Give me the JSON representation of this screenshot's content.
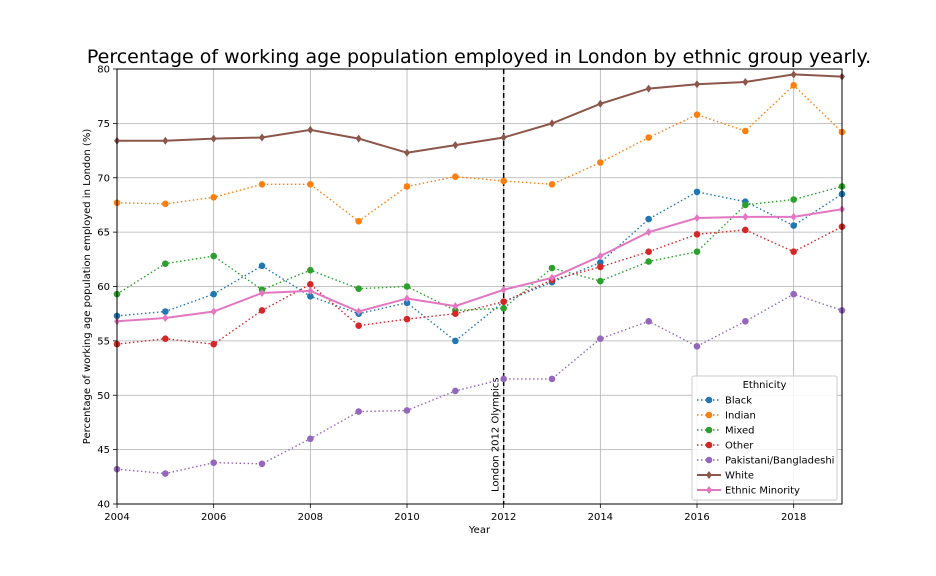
{
  "chart_data": {
    "type": "line",
    "title": "Percentage of working age population employed in London by ethnic group yearly.",
    "xlabel": "Year",
    "ylabel": "Percentage of working age population employed in London (%)",
    "xlim": [
      2004,
      2019
    ],
    "ylim": [
      40,
      80
    ],
    "xticks": [
      2004,
      2006,
      2008,
      2010,
      2012,
      2014,
      2016,
      2018
    ],
    "yticks": [
      40,
      45,
      50,
      55,
      60,
      65,
      70,
      75,
      80
    ],
    "grid": true,
    "legend_title": "Ethnicity",
    "legend_position": "lower-right",
    "annotation": {
      "x": 2012,
      "text": "London 2012 Olympics"
    },
    "x": [
      2004,
      2005,
      2006,
      2007,
      2008,
      2009,
      2010,
      2011,
      2012,
      2013,
      2014,
      2015,
      2016,
      2017,
      2018,
      2019
    ],
    "series": [
      {
        "name": "Black",
        "color": "#1f77b4",
        "style": "dotted",
        "marker": "circle",
        "values": [
          57.3,
          57.7,
          59.3,
          61.9,
          59.1,
          57.5,
          58.5,
          55.0,
          58.6,
          60.4,
          62.2,
          66.2,
          68.7,
          67.8,
          65.6,
          68.5
        ]
      },
      {
        "name": "Indian",
        "color": "#ff7f0e",
        "style": "dotted",
        "marker": "circle",
        "values": [
          67.7,
          67.6,
          68.2,
          69.4,
          69.4,
          66.0,
          69.2,
          70.1,
          69.7,
          69.4,
          71.4,
          73.7,
          75.8,
          74.3,
          78.5,
          74.2
        ]
      },
      {
        "name": "Mixed",
        "color": "#2ca02c",
        "style": "dotted",
        "marker": "circle",
        "values": [
          59.3,
          62.1,
          62.8,
          59.7,
          61.5,
          59.8,
          60.0,
          57.8,
          58.0,
          61.7,
          60.5,
          62.3,
          63.2,
          67.5,
          68.0,
          69.2
        ]
      },
      {
        "name": "Other",
        "color": "#d62728",
        "style": "dotted",
        "marker": "circle",
        "values": [
          54.7,
          55.2,
          54.7,
          57.8,
          60.2,
          56.4,
          57.0,
          57.5,
          58.6,
          60.6,
          61.8,
          63.2,
          64.8,
          65.2,
          63.2,
          65.5
        ]
      },
      {
        "name": "Pakistani/Bangladeshi",
        "color": "#9467bd",
        "style": "dotted",
        "marker": "circle",
        "values": [
          43.2,
          42.8,
          43.8,
          43.7,
          46.0,
          48.5,
          48.6,
          50.4,
          51.5,
          51.5,
          55.2,
          56.8,
          54.5,
          56.8,
          59.3,
          57.8
        ]
      },
      {
        "name": "White",
        "color": "#8c564b",
        "style": "solid",
        "marker": "diamond",
        "values": [
          73.4,
          73.4,
          73.6,
          73.7,
          74.4,
          73.6,
          72.3,
          73.0,
          73.7,
          75.0,
          76.8,
          78.2,
          78.6,
          78.8,
          79.5,
          79.3
        ]
      },
      {
        "name": "Ethnic Minority",
        "color": "#e377c2",
        "style": "solid",
        "marker": "diamond",
        "values": [
          56.8,
          57.1,
          57.7,
          59.4,
          59.6,
          57.7,
          58.9,
          58.2,
          59.7,
          60.8,
          62.8,
          65.0,
          66.3,
          66.4,
          66.4,
          67.1
        ]
      }
    ]
  }
}
